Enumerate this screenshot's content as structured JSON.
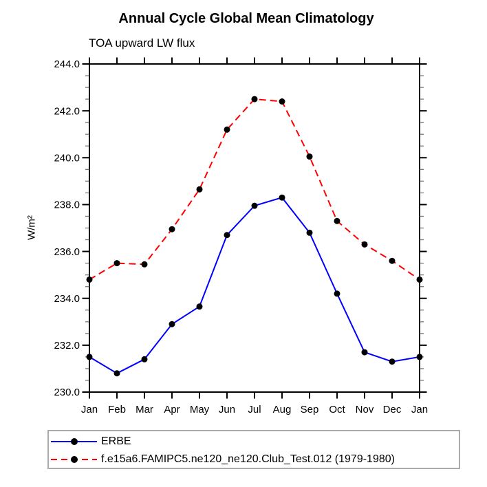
{
  "page": {
    "background_color": "#ffffff"
  },
  "chart_data": {
    "type": "line",
    "title": "Annual Cycle Global Mean Climatology",
    "subtitle": "TOA upward LW flux",
    "ylabel": "W/m²",
    "categories": [
      "Jan",
      "Feb",
      "Mar",
      "Apr",
      "May",
      "Jun",
      "Jul",
      "Aug",
      "Sep",
      "Oct",
      "Nov",
      "Dec",
      "Jan"
    ],
    "ylim": [
      230.0,
      244.0
    ],
    "ytick_major_interval": 2.0,
    "ytick_minor_interval": 0.5,
    "ytick_labels": [
      "230.0",
      "232.0",
      "234.0",
      "236.0",
      "238.0",
      "240.0",
      "242.0",
      "244.0"
    ],
    "grid": false,
    "legend_position": "bottom-left-box",
    "axis_color": "#000000",
    "marker": "filled-circle",
    "marker_color": "#000000",
    "series": [
      {
        "name": "ERBE",
        "color": "#0000ff",
        "line_style": "solid",
        "values": [
          231.5,
          230.8,
          231.4,
          232.9,
          233.65,
          236.7,
          237.95,
          238.3,
          236.8,
          234.2,
          231.7,
          231.3,
          231.5
        ]
      },
      {
        "name": "f.e15a6.FAMIPC5.ne120_ne120.Club_Test.012 (1979-1980)",
        "color": "#ff0000",
        "line_style": "dashed",
        "values": [
          234.8,
          235.5,
          235.45,
          236.95,
          238.65,
          241.2,
          242.5,
          242.4,
          240.05,
          237.3,
          236.3,
          235.6,
          234.8
        ]
      }
    ]
  }
}
